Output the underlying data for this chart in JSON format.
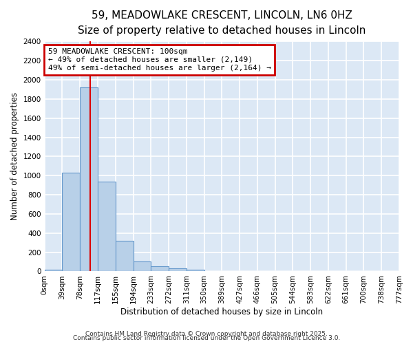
{
  "title_line1": "59, MEADOWLAKE CRESCENT, LINCOLN, LN6 0HZ",
  "title_line2": "Size of property relative to detached houses in Lincoln",
  "xlabel": "Distribution of detached houses by size in Lincoln",
  "ylabel": "Number of detached properties",
  "background_color": "#dce8f5",
  "bar_color": "#b8d0e8",
  "bar_edge_color": "#6699cc",
  "grid_color": "#ffffff",
  "annotation_box_color": "#cc0000",
  "vline_color": "#dd0000",
  "bin_labels": [
    "0sqm",
    "39sqm",
    "78sqm",
    "117sqm",
    "155sqm",
    "194sqm",
    "233sqm",
    "272sqm",
    "311sqm",
    "350sqm",
    "389sqm",
    "427sqm",
    "466sqm",
    "505sqm",
    "544sqm",
    "583sqm",
    "622sqm",
    "661sqm",
    "700sqm",
    "738sqm",
    "777sqm"
  ],
  "bar_values": [
    20,
    1030,
    1920,
    940,
    320,
    105,
    55,
    35,
    20,
    0,
    0,
    0,
    0,
    0,
    0,
    0,
    0,
    0,
    0,
    0
  ],
  "ylim": [
    0,
    2400
  ],
  "yticks": [
    0,
    200,
    400,
    600,
    800,
    1000,
    1200,
    1400,
    1600,
    1800,
    2000,
    2200,
    2400
  ],
  "annotation_text_line1": "59 MEADOWLAKE CRESCENT: 100sqm",
  "annotation_text_line2": "← 49% of detached houses are smaller (2,149)",
  "annotation_text_line3": "49% of semi-detached houses are larger (2,164) →",
  "footnote_line1": "Contains HM Land Registry data © Crown copyright and database right 2025.",
  "footnote_line2": "Contains public sector information licensed under the Open Government Licence 3.0.",
  "title_fontsize": 11,
  "subtitle_fontsize": 9.5,
  "axis_label_fontsize": 8.5,
  "tick_fontsize": 7.5,
  "annotation_fontsize": 8,
  "footnote_fontsize": 6.5
}
